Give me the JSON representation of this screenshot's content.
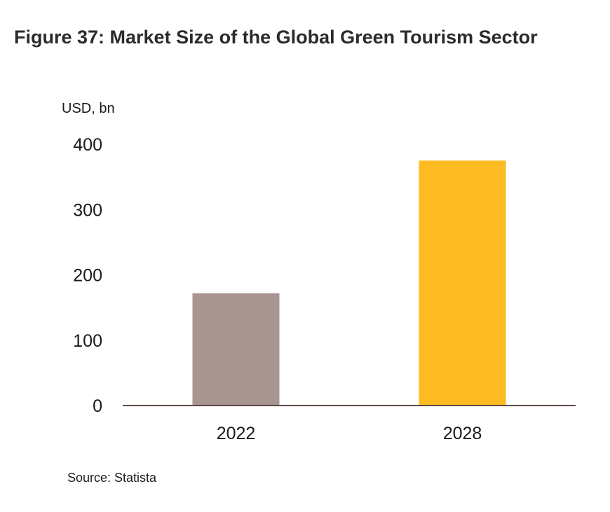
{
  "title": "Figure 37: Market Size of the Global Green Tourism Sector",
  "source": "Source: Statista",
  "chart_data": {
    "type": "bar",
    "title": "Figure 37: Market Size of the Global Green Tourism Sector",
    "ylabel": "USD, bn",
    "xlabel": "",
    "categories": [
      "2022",
      "2028"
    ],
    "values": [
      172,
      375
    ],
    "colors": [
      "#a89591",
      "#fdbb21"
    ],
    "ylim": [
      0,
      400
    ],
    "yticks": [
      0,
      100,
      200,
      300,
      400
    ],
    "grid": false,
    "legend": "none"
  },
  "colors": {
    "axis": "#5a4a44",
    "text": "#1a1a1a"
  }
}
